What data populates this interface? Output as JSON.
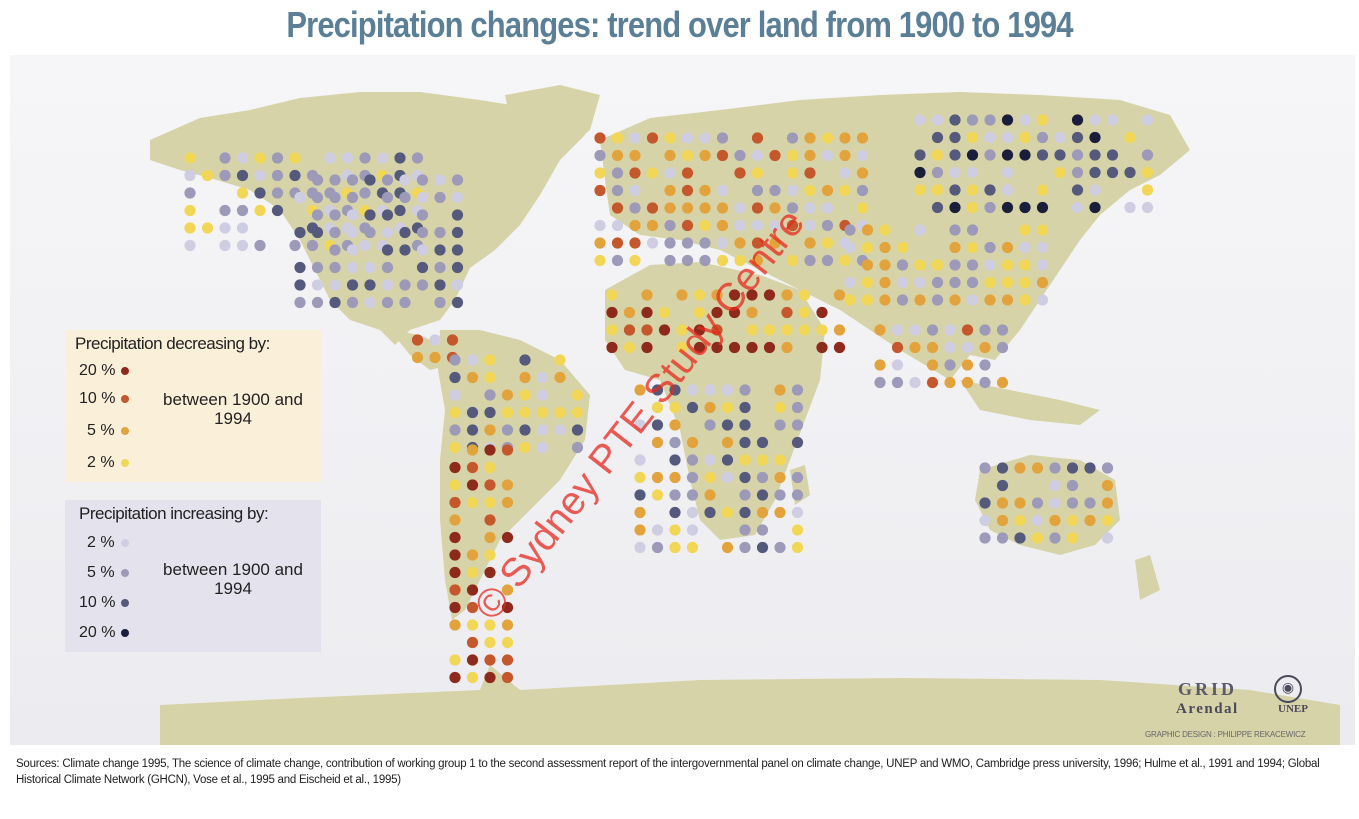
{
  "title": "Precipitation changes: trend over land from 1900 to 1994",
  "legend": {
    "decreasing": {
      "title": "Precipitation decreasing by:",
      "items": [
        {
          "label": "20 %",
          "color": "#8e2a1c"
        },
        {
          "label": "10 %",
          "color": "#c4572b"
        },
        {
          "label": "5 %",
          "color": "#e3a33c"
        },
        {
          "label": "2 %",
          "color": "#f2d655"
        }
      ],
      "note": "between 1900 and 1994"
    },
    "increasing": {
      "title": "Precipitation increasing by:",
      "items": [
        {
          "label": "2 %",
          "color": "#cfcde2"
        },
        {
          "label": "5 %",
          "color": "#9c9ab8"
        },
        {
          "label": "10 %",
          "color": "#555a7c"
        },
        {
          "label": "20 %",
          "color": "#1a1e3a"
        }
      ],
      "note": "between 1900 and 1994"
    }
  },
  "logo": {
    "grid": "GRID",
    "arendal": "Arendal",
    "unep": "UNEP"
  },
  "credit": "GRAPHIC DESIGN : PHILIPPE REKACEWICZ",
  "sources": "Sources: Climate change 1995, The science of climate change, contribution of working group 1 to the second assessment report of the intergovernmental panel on climate change, UNEP and WMO, Cambridge press university, 1996; Hulme et al., 1991 and 1994; Global Historical Climate Network (GHCN), Vose et al., 1995 and Eischeid et al., 1995)",
  "watermark": "© Sydney PTE Study Centre",
  "colors": {
    "land": "#d6d3a8",
    "ocean": "#f0f0f3",
    "title": "#5a7f96"
  },
  "regions": [
    {
      "name": "north-america-north",
      "palette": [
        "#cfcde2",
        "#9c9ab8",
        "#f2d655",
        "#555a7c"
      ]
    },
    {
      "name": "north-america-east",
      "palette": [
        "#555a7c",
        "#9c9ab8",
        "#cfcde2"
      ]
    },
    {
      "name": "central-america",
      "palette": [
        "#e3a33c",
        "#c4572b",
        "#cfcde2"
      ]
    },
    {
      "name": "south-america",
      "palette": [
        "#f2d655",
        "#9c9ab8",
        "#555a7c",
        "#cfcde2",
        "#e3a33c"
      ]
    },
    {
      "name": "south-america-west",
      "palette": [
        "#8e2a1c",
        "#c4572b",
        "#e3a33c",
        "#f2d655"
      ]
    },
    {
      "name": "europe",
      "palette": [
        "#e3a33c",
        "#f2d655",
        "#9c9ab8",
        "#cfcde2",
        "#c4572b"
      ]
    },
    {
      "name": "sahel",
      "palette": [
        "#8e2a1c",
        "#c4572b",
        "#e3a33c",
        "#f2d655"
      ]
    },
    {
      "name": "africa-south",
      "palette": [
        "#9c9ab8",
        "#e3a33c",
        "#cfcde2",
        "#f2d655",
        "#555a7c"
      ]
    },
    {
      "name": "russia",
      "palette": [
        "#555a7c",
        "#1a1e3a",
        "#9c9ab8",
        "#cfcde2",
        "#f2d655"
      ]
    },
    {
      "name": "asia",
      "palette": [
        "#cfcde2",
        "#f2d655",
        "#e3a33c",
        "#9c9ab8"
      ]
    },
    {
      "name": "south-asia",
      "palette": [
        "#e3a33c",
        "#c4572b",
        "#9c9ab8",
        "#cfcde2"
      ]
    },
    {
      "name": "australia",
      "palette": [
        "#9c9ab8",
        "#555a7c",
        "#e3a33c",
        "#f2d655",
        "#cfcde2"
      ]
    }
  ]
}
